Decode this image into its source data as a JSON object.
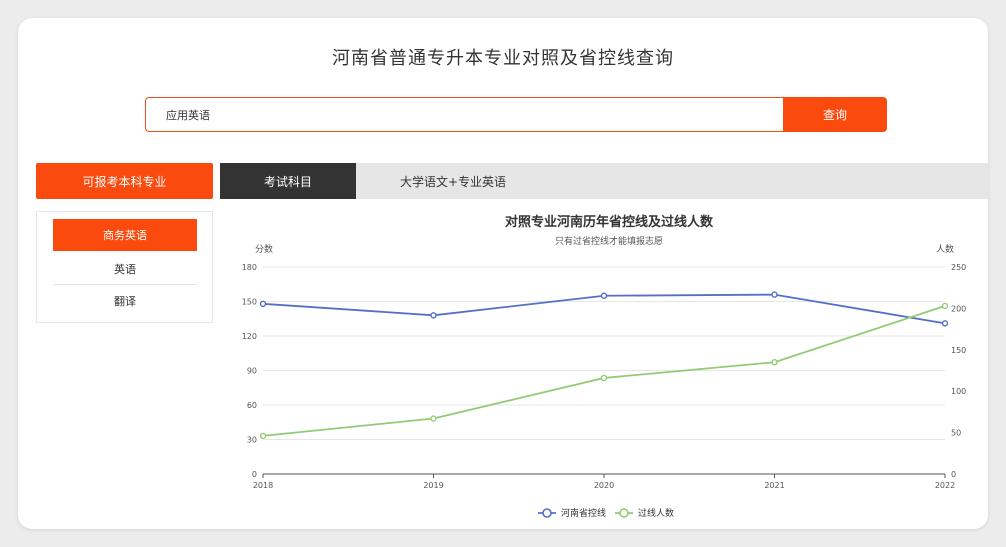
{
  "page": {
    "title": "河南省普通专升本专业对照及省控线查询"
  },
  "search": {
    "value": "应用英语",
    "button_label": "查询"
  },
  "sidebar": {
    "header": "可报考本科专业",
    "items": [
      {
        "label": "商务英语",
        "active": true
      },
      {
        "label": "英语",
        "active": false
      },
      {
        "label": "翻译",
        "active": false
      }
    ]
  },
  "tabs": {
    "active_label": "考试科目",
    "value": "大学语文+专业英语"
  },
  "colors": {
    "accent": "#fa4a0e",
    "line1": "#5470c6",
    "line2": "#91cc75",
    "tab_dark": "#333333"
  },
  "chart_data": {
    "type": "line",
    "title": "对照专业河南历年省控线及过线人数",
    "subtitle": "只有过省控线才能填报志愿",
    "ylabel_left": "分数",
    "ylabel_right": "人数",
    "x": [
      "2018",
      "2019",
      "2020",
      "2021",
      "2022"
    ],
    "ylim_left": [
      0,
      180
    ],
    "ylim_right": [
      0,
      250
    ],
    "yticks_left": [
      0,
      30,
      60,
      90,
      120,
      150,
      180
    ],
    "yticks_right": [
      0,
      50,
      100,
      150,
      200,
      250
    ],
    "series": [
      {
        "name": "河南省控线",
        "axis": "left",
        "color": "#5470c6",
        "values": [
          148,
          138,
          155,
          156,
          131
        ]
      },
      {
        "name": "过线人数",
        "axis": "right",
        "color": "#91cc75",
        "values": [
          46,
          67,
          116,
          135,
          203
        ]
      }
    ],
    "grid": true,
    "legend": "bottom-center"
  }
}
